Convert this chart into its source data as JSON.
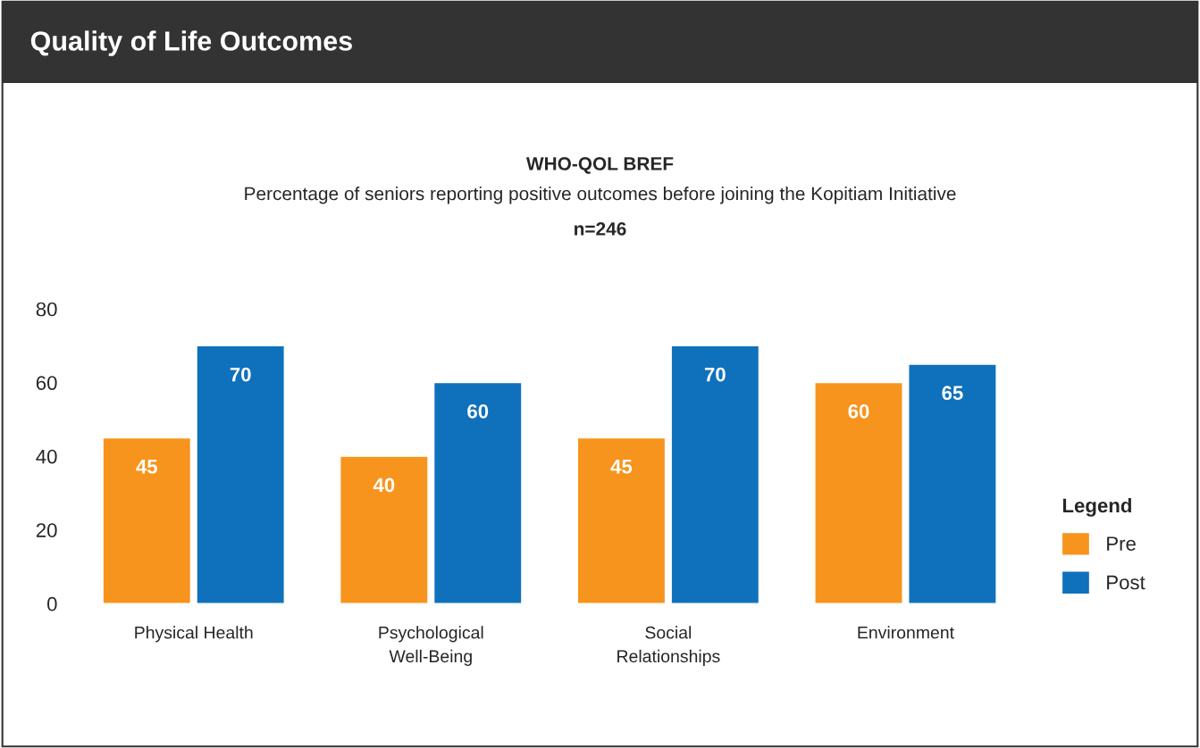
{
  "chart_data": {
    "type": "bar",
    "title": "Quality of Life Outcomes",
    "subtitle": "WHO-QOL BREF",
    "annotations": [
      "Percentage of seniors reporting positive outcomes before joining the Kopitiam Initiative",
      "n=246"
    ],
    "categories": [
      "Physical Health",
      "Psychological\nWell-Being",
      "Social\nRelationships",
      "Environment"
    ],
    "series": [
      {
        "name": "Pre",
        "color": "#f7941d",
        "values": [
          45,
          40,
          45,
          60
        ]
      },
      {
        "name": "Post",
        "color": "#0f71bc",
        "values": [
          70,
          60,
          70,
          65
        ]
      }
    ],
    "ylim": [
      0,
      80
    ],
    "yticks": [
      0,
      20,
      40,
      60,
      80
    ],
    "grid": false,
    "data_labels": true,
    "legend": "right",
    "legend_title": "Legend"
  }
}
